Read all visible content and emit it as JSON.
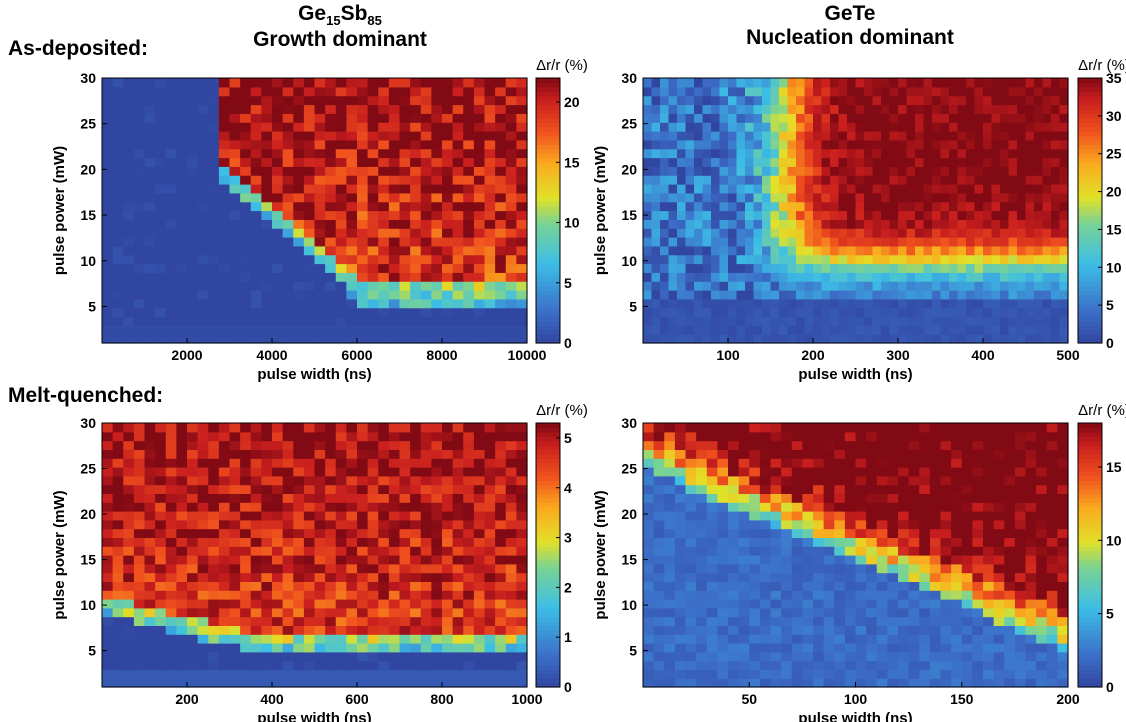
{
  "columns": [
    {
      "compound_main": "Ge",
      "compound_sub1": "15",
      "compound_mid": "Sb",
      "compound_sub2": "85",
      "mode": "Growth dominant"
    },
    {
      "compound_main": "GeTe",
      "mode": "Nucleation dominant"
    }
  ],
  "rows": [
    "As-deposited:",
    "Melt-quenched:"
  ],
  "chart_data": [
    {
      "type": "heatmap",
      "row": "As-deposited:",
      "column": "Ge15Sb85",
      "xlabel": "pulse width (ns)",
      "ylabel": "pulse power (mW)",
      "colorbar_label": "Δr/r (%)",
      "xlim": [
        0,
        10000
      ],
      "ylim": [
        1,
        30
      ],
      "xticks": [
        2000,
        4000,
        6000,
        8000,
        10000
      ],
      "yticks": [
        5,
        10,
        15,
        20,
        25,
        30
      ],
      "cbar_ticks": [
        0,
        5,
        10,
        15,
        20
      ],
      "clim": [
        0,
        22
      ],
      "nx": 40,
      "ny": 30,
      "pattern": {
        "kind": "growth",
        "onset_power_high": 19,
        "onset_power_low": 5,
        "onset_x": 0.27,
        "plateau": 17.5,
        "edge_peak": 11,
        "plateau_gain": 4.5,
        "edge_width": 2.5,
        "noise": 0.55,
        "seed": 11
      }
    },
    {
      "type": "heatmap",
      "row": "As-deposited:",
      "column": "GeTe",
      "xlabel": "pulse width (ns)",
      "ylabel": "pulse power (mW)",
      "colorbar_label": "Δr/r (%)",
      "xlim": [
        0,
        500
      ],
      "ylim": [
        1,
        30
      ],
      "xticks": [
        100,
        200,
        300,
        400,
        500
      ],
      "yticks": [
        5,
        10,
        15,
        20,
        25,
        30
      ],
      "cbar_ticks": [
        0,
        5,
        10,
        15,
        20,
        25,
        30,
        35
      ],
      "clim": [
        0,
        35
      ],
      "nx": 50,
      "ny": 30,
      "pattern": {
        "kind": "nucleation",
        "onset_x": 0.33,
        "threshold_power": 6,
        "plateau": 31,
        "noise": 0.18,
        "seed": 23
      }
    },
    {
      "type": "heatmap",
      "row": "Melt-quenched:",
      "column": "Ge15Sb85",
      "xlabel": "pulse width (ns)",
      "ylabel": "pulse power (mW)",
      "colorbar_label": "Δr/r (%)",
      "xlim": [
        0,
        1000
      ],
      "ylim": [
        1,
        30
      ],
      "xticks": [
        200,
        400,
        600,
        800,
        1000
      ],
      "yticks": [
        5,
        10,
        15,
        20,
        25,
        30
      ],
      "cbar_ticks": [
        0,
        1,
        2,
        3,
        4,
        5
      ],
      "clim": [
        0,
        5.3
      ],
      "nx": 40,
      "ny": 30,
      "pattern": {
        "kind": "growth",
        "onset_power_high": 9,
        "onset_power_low": 5,
        "onset_x": 0.0,
        "plateau": 4.3,
        "edge_peak": 3.0,
        "plateau_gain": 0.9,
        "edge_width": 2.0,
        "noise": 0.45,
        "seed": 37
      }
    },
    {
      "type": "heatmap",
      "row": "Melt-quenched:",
      "column": "GeTe",
      "xlabel": "pulse width (ns)",
      "ylabel": "pulse power (mW)",
      "colorbar_label": "Δr/r (%)",
      "xlim": [
        0,
        200
      ],
      "ylim": [
        1,
        30
      ],
      "xticks": [
        50,
        100,
        150,
        200
      ],
      "yticks": [
        5,
        10,
        15,
        20,
        25,
        30
      ],
      "cbar_ticks": [
        0,
        5,
        10,
        15
      ],
      "clim": [
        0,
        18
      ],
      "nx": 40,
      "ny": 30,
      "pattern": {
        "kind": "diagonal",
        "plateau": 16.5,
        "noise": 0.3,
        "seed": 53
      }
    }
  ]
}
